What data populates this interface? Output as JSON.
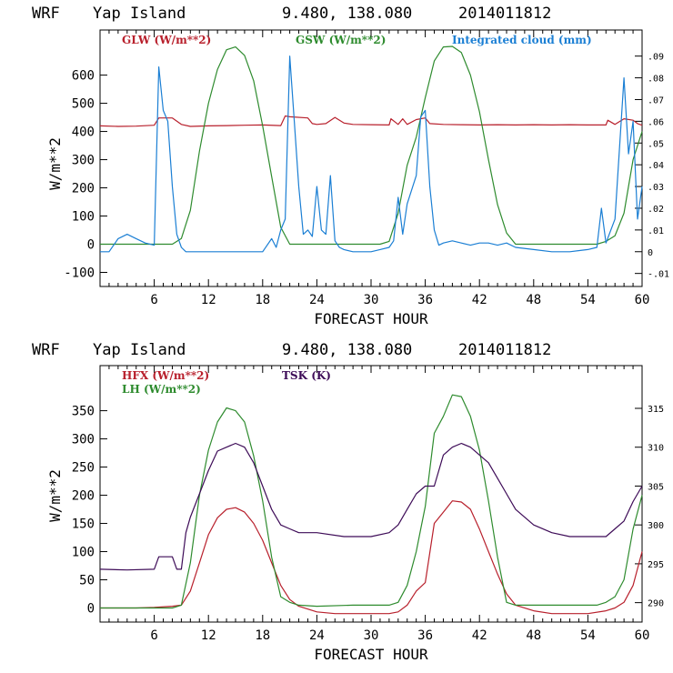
{
  "panels": [
    {
      "header": {
        "model": "WRF",
        "location": "Yap Island",
        "coords": "9.480, 138.080",
        "init": "2014011812"
      },
      "xlabel": "FORECAST HOUR",
      "ylabel": "W/m**2",
      "legend": [
        {
          "text": "GLW (W/m**2)",
          "color": "#b8202c"
        },
        {
          "text": "GSW (W/m**2)",
          "color": "#2e8b2e"
        },
        {
          "text": "Integrated cloud (mm)",
          "color": "#1b7fd4"
        }
      ],
      "x_ticks": [
        "6",
        "12",
        "18",
        "24",
        "30",
        "36",
        "42",
        "48",
        "54",
        "60"
      ],
      "y_ticks": [
        "-100",
        "0",
        "100",
        "200",
        "300",
        "400",
        "500",
        "600"
      ],
      "right_ticks": [
        "-.01",
        "0",
        ".01",
        ".02",
        ".03",
        ".04",
        ".05",
        ".06",
        ".07",
        ".08",
        ".09"
      ]
    },
    {
      "header": {
        "model": "WRF",
        "location": "Yap Island",
        "coords": "9.480, 138.080",
        "init": "2014011812"
      },
      "xlabel": "FORECAST HOUR",
      "ylabel": "W/m**2",
      "legend": [
        {
          "text": "HFX (W/m**2)",
          "color": "#b8202c"
        },
        {
          "text": "LH  (W/m**2)",
          "color": "#2e8b2e"
        },
        {
          "text": "TSK (K)",
          "color": "#3d0b57"
        }
      ],
      "x_ticks": [
        "6",
        "12",
        "18",
        "24",
        "30",
        "36",
        "42",
        "48",
        "54",
        "60"
      ],
      "y_ticks": [
        "0",
        "50",
        "100",
        "150",
        "200",
        "250",
        "300",
        "350"
      ],
      "right_ticks": [
        "290",
        "295",
        "300",
        "305",
        "310",
        "315"
      ]
    }
  ],
  "chart_data": [
    {
      "type": "line",
      "title": "WRF Yap Island 9.480, 138.080 2014011812",
      "xlabel": "FORECAST HOUR",
      "ylabel": "W/m**2",
      "xlim": [
        0,
        60
      ],
      "ylim": [
        -150,
        760
      ],
      "y2lim": [
        -0.016,
        0.102
      ],
      "series": [
        {
          "name": "GLW (W/m**2)",
          "color": "#b8202c",
          "axis": "left",
          "x": [
            0,
            2,
            4,
            6,
            6.5,
            8,
            9,
            10,
            12,
            14,
            16,
            18,
            20,
            20.5,
            21,
            23,
            23.5,
            24,
            25,
            26,
            27,
            28,
            30,
            32,
            32.2,
            33,
            33.5,
            34,
            35,
            36,
            36.5,
            38,
            40,
            42,
            44,
            46,
            48,
            50,
            52,
            54,
            56,
            56.2,
            57,
            58,
            59,
            59.5,
            60
          ],
          "y": [
            420,
            418,
            419,
            422,
            448,
            448,
            425,
            418,
            420,
            421,
            422,
            423,
            421,
            455,
            452,
            448,
            428,
            425,
            428,
            450,
            430,
            425,
            424,
            423,
            445,
            425,
            445,
            425,
            442,
            448,
            428,
            425,
            424,
            423,
            424,
            423,
            424,
            423,
            424,
            423,
            423,
            440,
            425,
            445,
            440,
            428,
            422
          ]
        },
        {
          "name": "GSW (W/m**2)",
          "color": "#2e8b2e",
          "axis": "left",
          "x": [
            0,
            8,
            9,
            10,
            11,
            12,
            13,
            14,
            15,
            16,
            17,
            18,
            19,
            20,
            21,
            22,
            30,
            31,
            32,
            33,
            34,
            35,
            36,
            37,
            38,
            39,
            40,
            41,
            42,
            43,
            44,
            45,
            46,
            55,
            56,
            57,
            58,
            59,
            60
          ],
          "y": [
            0,
            0,
            20,
            120,
            330,
            500,
            620,
            690,
            700,
            670,
            580,
            420,
            240,
            60,
            0,
            0,
            0,
            0,
            10,
            110,
            280,
            380,
            520,
            650,
            700,
            702,
            680,
            600,
            470,
            300,
            140,
            40,
            0,
            0,
            10,
            30,
            110,
            300,
            400
          ]
        },
        {
          "name": "Integrated cloud (mm)",
          "color": "#1b7fd4",
          "axis": "right",
          "x": [
            0,
            1,
            2,
            3,
            4,
            5,
            6,
            6.5,
            7,
            7.5,
            8,
            8.5,
            9,
            9.5,
            10,
            12,
            14,
            16,
            18,
            19,
            19.5,
            20,
            20.5,
            21,
            21.5,
            22,
            22.5,
            23,
            23.5,
            24,
            24.5,
            25,
            25.5,
            26,
            26.5,
            27,
            28,
            30,
            31,
            32,
            32.5,
            33,
            33.5,
            34,
            35,
            35.5,
            36,
            36.5,
            37,
            37.5,
            38,
            39,
            40,
            41,
            42,
            43,
            44,
            45,
            46,
            48,
            50,
            52,
            54,
            55,
            55.5,
            56,
            57,
            58,
            58.5,
            59,
            59.5,
            60
          ],
          "y": [
            0,
            0,
            0.006,
            0.008,
            0.006,
            0.004,
            0.003,
            0.085,
            0.065,
            0.06,
            0.03,
            0.008,
            0.002,
            0,
            0,
            0,
            0,
            0,
            0,
            0.006,
            0.002,
            0.01,
            0.015,
            0.09,
            0.06,
            0.03,
            0.008,
            0.01,
            0.007,
            0.03,
            0.01,
            0.008,
            0.035,
            0.005,
            0.002,
            0.001,
            0,
            0,
            0.001,
            0.002,
            0.005,
            0.025,
            0.008,
            0.022,
            0.035,
            0.062,
            0.065,
            0.03,
            0.01,
            0.003,
            0.004,
            0.005,
            0.004,
            0.003,
            0.004,
            0.004,
            0.003,
            0.004,
            0.002,
            0.001,
            0,
            0,
            0.001,
            0.002,
            0.02,
            0.004,
            0.015,
            0.08,
            0.045,
            0.06,
            0.015,
            0.03
          ]
        }
      ]
    },
    {
      "type": "line",
      "title": "WRF Yap Island 9.480, 138.080 2014011812",
      "xlabel": "FORECAST HOUR",
      "ylabel": "W/m**2",
      "xlim": [
        0,
        60
      ],
      "ylim": [
        -25,
        430
      ],
      "y2lim": [
        287.5,
        320.5
      ],
      "series": [
        {
          "name": "HFX (W/m**2)",
          "color": "#b8202c",
          "axis": "left",
          "x": [
            0,
            2,
            4,
            6,
            8,
            9,
            10,
            11,
            12,
            13,
            14,
            15,
            16,
            17,
            18,
            19,
            20,
            21,
            22,
            24,
            26,
            28,
            30,
            32,
            33,
            34,
            35,
            36,
            37,
            38,
            39,
            40,
            41,
            42,
            43,
            44,
            45,
            46,
            48,
            50,
            52,
            54,
            56,
            57,
            58,
            59,
            60
          ],
          "y": [
            0,
            0,
            0,
            1,
            3,
            5,
            30,
            80,
            130,
            160,
            175,
            178,
            170,
            150,
            120,
            80,
            40,
            15,
            3,
            -7,
            -10,
            -10,
            -10,
            -10,
            -7,
            5,
            30,
            45,
            150,
            170,
            190,
            188,
            175,
            140,
            100,
            60,
            25,
            5,
            -5,
            -10,
            -10,
            -10,
            -5,
            0,
            10,
            40,
            100
          ]
        },
        {
          "name": "LH  (W/m**2)",
          "color": "#2e8b2e",
          "axis": "left",
          "x": [
            0,
            4,
            8,
            9,
            10,
            11,
            12,
            13,
            14,
            15,
            16,
            17,
            18,
            19,
            20,
            21,
            22,
            24,
            28,
            30,
            32,
            33,
            34,
            35,
            35.5,
            36,
            37,
            38,
            39,
            40,
            41,
            42,
            43,
            44,
            45,
            46,
            48,
            52,
            55,
            56,
            57,
            58,
            59,
            60
          ],
          "y": [
            0,
            0,
            0,
            5,
            80,
            200,
            280,
            330,
            355,
            350,
            330,
            270,
            190,
            90,
            20,
            10,
            5,
            3,
            5,
            5,
            5,
            10,
            40,
            100,
            140,
            180,
            310,
            340,
            378,
            375,
            340,
            280,
            190,
            90,
            10,
            5,
            5,
            5,
            5,
            10,
            20,
            50,
            140,
            200
          ]
        },
        {
          "name": "TSK (K)",
          "color": "#3d0b57",
          "axis": "right",
          "x": [
            0,
            3,
            6,
            6.5,
            8,
            8.5,
            9,
            9.5,
            10,
            11,
            12,
            13,
            14,
            15,
            16,
            17,
            18,
            19,
            20,
            21,
            22,
            24,
            27,
            30,
            32,
            33,
            34,
            35,
            36,
            37,
            38,
            39,
            40,
            41,
            42,
            43,
            44,
            45,
            46,
            48,
            50,
            52,
            54,
            56,
            57,
            58,
            59,
            60
          ],
          "y": [
            294.3,
            294.2,
            294.3,
            295.9,
            295.9,
            294.3,
            294.3,
            299,
            301,
            304,
            307,
            309.5,
            310,
            310.5,
            310,
            308,
            305,
            302,
            300,
            299.5,
            299,
            299,
            298.5,
            298.5,
            299,
            300,
            302,
            304,
            305,
            305,
            309,
            310,
            310.5,
            310,
            309,
            308,
            306,
            304,
            302,
            300,
            299,
            298.5,
            298.5,
            298.5,
            299.5,
            300.5,
            303,
            305
          ]
        }
      ]
    }
  ]
}
